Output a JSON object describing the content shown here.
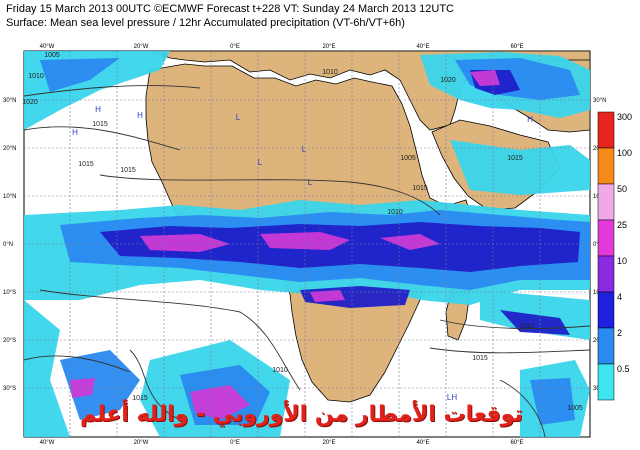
{
  "header": {
    "line1": "Friday 15 March 2013 00UTC ©ECMWF Forecast t+228 VT: Sunday 24 March 2013 12UTC",
    "line2": "Surface: Mean sea level pressure / 12hr Accumulated precipitation (VT-6h/VT+6h)"
  },
  "axes": {
    "top_lon": [
      "40°W",
      "20°W",
      "0°E",
      "20°E",
      "40°E",
      "60°E"
    ],
    "bottom_lon": [
      "40°W",
      "20°W",
      "0°E",
      "20°E",
      "40°E",
      "60°E"
    ],
    "left_lat": [
      "30°N",
      "20°N",
      "10°N",
      "0°N",
      "10°S",
      "20°S",
      "30°S"
    ],
    "right_lat": [
      "30°N",
      "20°N",
      "10°N",
      "0°N",
      "10°S",
      "20°S",
      "30°S"
    ]
  },
  "isobars": [
    "1005",
    "1010",
    "1020",
    "1015",
    "1015",
    "1015",
    "1010",
    "1005",
    "1010",
    "1020",
    "1015",
    "1015",
    "1010",
    "1015",
    "1005",
    "1010",
    "1015"
  ],
  "pressure_centres": [
    "H",
    "H",
    "H",
    "H",
    "L",
    "L",
    "L",
    "L",
    "L",
    "LH"
  ],
  "legend": {
    "levels": [
      "300",
      "100",
      "50",
      "25",
      "10",
      "4",
      "2",
      "0.5"
    ],
    "colors": [
      "#e8241e",
      "#f58a1a",
      "#f0a8e8",
      "#e23ad8",
      "#8a2be2",
      "#1f1fe0",
      "#2a8af0",
      "#3fe6f0"
    ]
  },
  "colors": {
    "ocean": "#ffffff",
    "land": "#ddb57c",
    "grid": "#7a7aa0",
    "light_rain": "#39d5ec",
    "mid_rain": "#2166e8",
    "heavy_rain": "#2020c8",
    "very_heavy": "#cc3ad6"
  },
  "watermark": "توقعات الأمطار من الأوروبي - والله أعلم"
}
